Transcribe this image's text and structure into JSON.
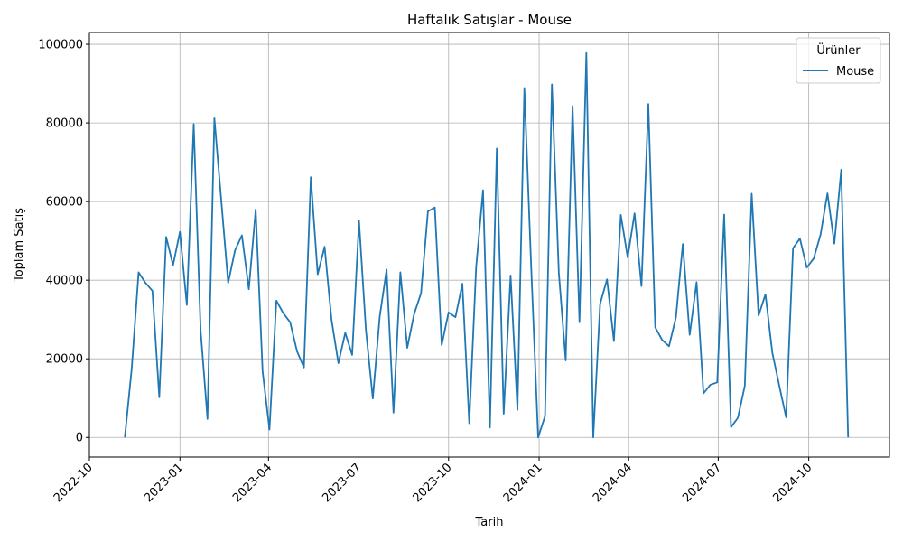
{
  "chart_data": {
    "type": "line",
    "title": "Haftalık Satışlar - Mouse",
    "xlabel": "Tarih",
    "ylabel": "Toplam Satış",
    "xlim": [
      "2022-10-01",
      "2024-12-22"
    ],
    "ylim": [
      -5000,
      103000
    ],
    "yticks": [
      0,
      20000,
      40000,
      60000,
      80000,
      100000
    ],
    "ytick_labels": [
      "0",
      "20000",
      "40000",
      "60000",
      "80000",
      "100000"
    ],
    "xticks": [
      "2022-10-01",
      "2023-01-01",
      "2023-04-01",
      "2023-07-01",
      "2023-10-01",
      "2024-01-01",
      "2024-04-01",
      "2024-07-01",
      "2024-10-01"
    ],
    "xtick_labels": [
      "2022-10",
      "2023-01",
      "2023-04",
      "2023-07",
      "2023-10",
      "2024-01",
      "2024-04",
      "2024-07",
      "2024-10"
    ],
    "grid": true,
    "legend": {
      "title": "Ürünler",
      "position": "top-right"
    },
    "colors": {
      "Mouse": "#1f77b4"
    },
    "series": [
      {
        "name": "Mouse",
        "x": [
          "2022-11-06",
          "2022-11-13",
          "2022-11-20",
          "2022-11-27",
          "2022-12-04",
          "2022-12-11",
          "2022-12-18",
          "2022-12-25",
          "2023-01-01",
          "2023-01-08",
          "2023-01-15",
          "2023-01-22",
          "2023-01-29",
          "2023-02-05",
          "2023-02-12",
          "2023-02-19",
          "2023-02-26",
          "2023-03-05",
          "2023-03-12",
          "2023-03-19",
          "2023-03-26",
          "2023-04-02",
          "2023-04-09",
          "2023-04-16",
          "2023-04-23",
          "2023-04-30",
          "2023-05-07",
          "2023-05-14",
          "2023-05-21",
          "2023-05-28",
          "2023-06-04",
          "2023-06-11",
          "2023-06-18",
          "2023-06-25",
          "2023-07-02",
          "2023-07-09",
          "2023-07-16",
          "2023-07-23",
          "2023-07-30",
          "2023-08-06",
          "2023-08-13",
          "2023-08-20",
          "2023-08-27",
          "2023-09-03",
          "2023-09-10",
          "2023-09-17",
          "2023-09-24",
          "2023-10-01",
          "2023-10-08",
          "2023-10-15",
          "2023-10-22",
          "2023-10-29",
          "2023-11-05",
          "2023-11-12",
          "2023-11-19",
          "2023-11-26",
          "2023-12-03",
          "2023-12-10",
          "2023-12-17",
          "2023-12-24",
          "2023-12-31",
          "2024-01-07",
          "2024-01-14",
          "2024-01-21",
          "2024-01-28",
          "2024-02-04",
          "2024-02-11",
          "2024-02-18",
          "2024-02-25",
          "2024-03-03",
          "2024-03-10",
          "2024-03-17",
          "2024-03-24",
          "2024-03-31",
          "2024-04-07",
          "2024-04-14",
          "2024-04-21",
          "2024-04-28",
          "2024-05-05",
          "2024-05-12",
          "2024-05-19",
          "2024-05-26",
          "2024-06-02",
          "2024-06-09",
          "2024-06-16",
          "2024-06-23",
          "2024-06-30",
          "2024-07-07",
          "2024-07-14",
          "2024-07-21",
          "2024-07-28",
          "2024-08-04",
          "2024-08-11",
          "2024-08-18",
          "2024-08-25",
          "2024-09-01",
          "2024-09-08",
          "2024-09-15",
          "2024-09-22",
          "2024-09-29",
          "2024-10-06",
          "2024-10-13",
          "2024-10-20",
          "2024-10-27",
          "2024-11-03",
          "2024-11-10"
        ],
        "values": [
          0,
          17500,
          42000,
          39300,
          37300,
          10200,
          51000,
          43800,
          52300,
          33700,
          79700,
          27300,
          4700,
          81200,
          60300,
          39300,
          47600,
          51400,
          37700,
          58000,
          16800,
          2000,
          34800,
          31600,
          29300,
          21900,
          17800,
          66200,
          41500,
          48500,
          30000,
          18900,
          26600,
          21000,
          55100,
          27300,
          9900,
          30700,
          42700,
          6300,
          42000,
          22800,
          31400,
          36700,
          57500,
          58500,
          23500,
          31800,
          30600,
          39100,
          3600,
          43300,
          62900,
          2500,
          73500,
          6000,
          41200,
          7000,
          88900,
          43000,
          0,
          5400,
          89800,
          42000,
          19600,
          84300,
          29300,
          97800,
          0,
          34000,
          40200,
          24500,
          56600,
          45800,
          57000,
          38500,
          84800,
          28000,
          24800,
          23200,
          30500,
          49200,
          26100,
          39500,
          11200,
          13400,
          14000,
          56700,
          2600,
          5000,
          13100,
          62000,
          31000,
          36400,
          21500,
          13200,
          5100,
          48100,
          50600,
          43200,
          45500,
          51600,
          62100,
          49300,
          68100,
          0
        ]
      }
    ]
  }
}
